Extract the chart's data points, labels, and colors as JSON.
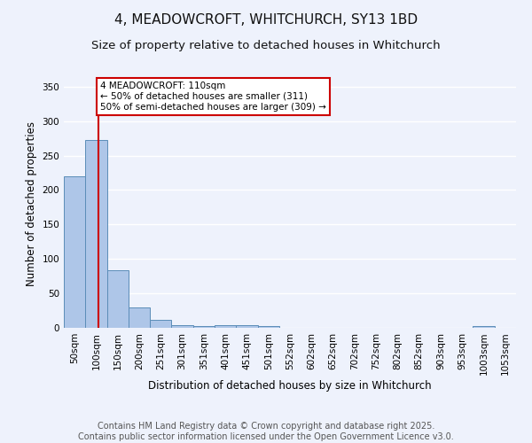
{
  "title": "4, MEADOWCROFT, WHITCHURCH, SY13 1BD",
  "subtitle": "Size of property relative to detached houses in Whitchurch",
  "xlabel": "Distribution of detached houses by size in Whitchurch",
  "ylabel": "Number of detached properties",
  "bins": [
    "50sqm",
    "100sqm",
    "150sqm",
    "200sqm",
    "251sqm",
    "301sqm",
    "351sqm",
    "401sqm",
    "451sqm",
    "501sqm",
    "552sqm",
    "602sqm",
    "652sqm",
    "702sqm",
    "752sqm",
    "802sqm",
    "852sqm",
    "903sqm",
    "953sqm",
    "1003sqm",
    "1053sqm"
  ],
  "values": [
    220,
    272,
    83,
    29,
    12,
    4,
    3,
    4,
    4,
    3,
    0,
    0,
    0,
    0,
    0,
    0,
    0,
    0,
    0,
    2,
    0
  ],
  "bar_color": "#aec6e8",
  "bar_edge_color": "#5b8db8",
  "vline_x_index": 1.1,
  "vline_color": "#cc0000",
  "annotation_line1": "4 MEADOWCROFT: 110sqm",
  "annotation_line2": "← 50% of detached houses are smaller (311)",
  "annotation_line3": "50% of semi-detached houses are larger (309) →",
  "annotation_box_color": "#ffffff",
  "annotation_box_edge": "#cc0000",
  "ylim": [
    0,
    360
  ],
  "yticks": [
    0,
    50,
    100,
    150,
    200,
    250,
    300,
    350
  ],
  "footer_text": "Contains HM Land Registry data © Crown copyright and database right 2025.\nContains public sector information licensed under the Open Government Licence v3.0.",
  "bg_color": "#eef2fc",
  "grid_color": "#ffffff",
  "title_fontsize": 11,
  "subtitle_fontsize": 9.5,
  "label_fontsize": 8.5,
  "tick_fontsize": 7.5,
  "footer_fontsize": 7
}
